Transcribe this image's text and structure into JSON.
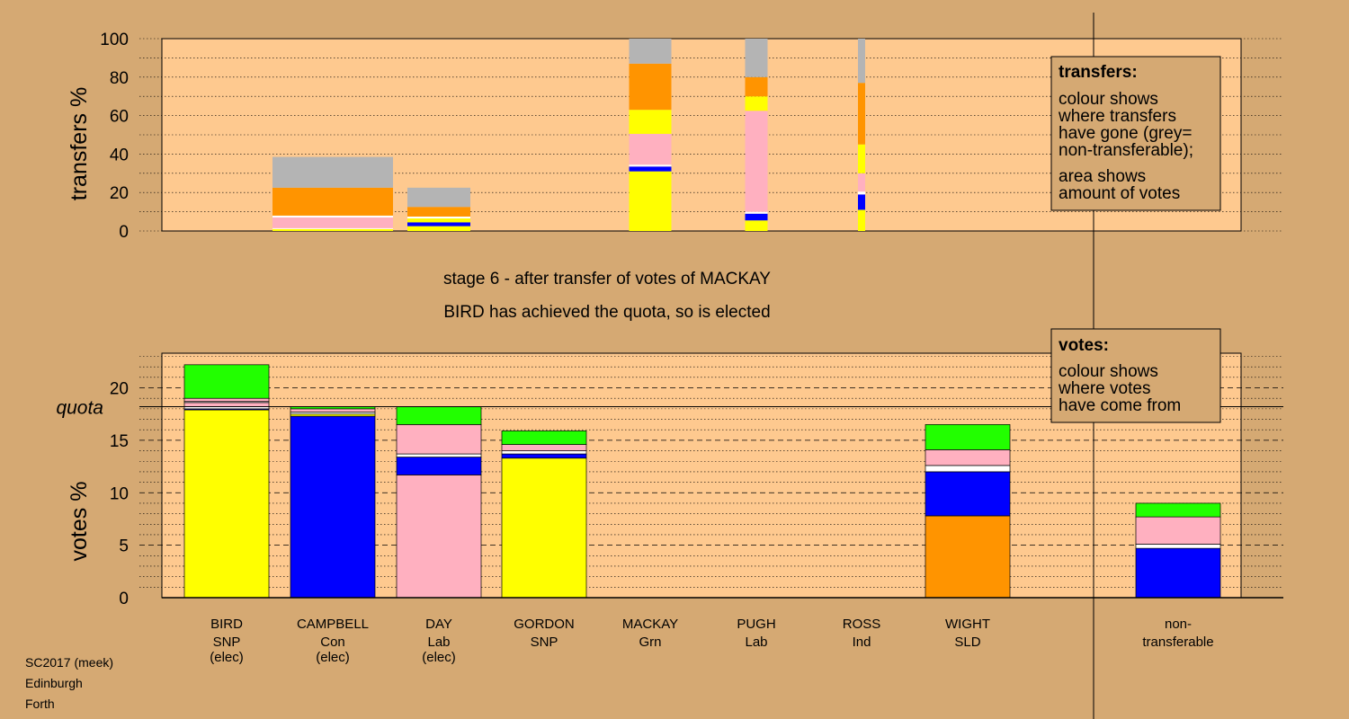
{
  "chart_data": [
    {
      "type": "bar",
      "stacked": true,
      "ylabel": "transfers %",
      "ylim": [
        0,
        100
      ],
      "yticks": [
        0,
        20,
        40,
        60,
        80,
        100
      ],
      "grid": true,
      "series_colors": {
        "SNP": "#ffff00",
        "Con": "#0000ff",
        "Lab": "#ffb0c0",
        "SLD": "#ff9400",
        "Grn": "#22ff00",
        "Ind": "#ffffff",
        "non-transferable": "#b4b4b4"
      },
      "categories": [
        "BIRD",
        "CAMPBELL",
        "DAY",
        "GORDON",
        "MACKAY",
        "PUGH",
        "ROSS",
        "WIGHT",
        "non-transferable"
      ],
      "bars": [
        {
          "candidate": "CAMPBELL",
          "segments": [
            {
              "party": "SNP",
              "value": 1
            },
            {
              "party": "Ind",
              "value": 0.5
            },
            {
              "party": "Lab",
              "value": 5.5
            },
            {
              "party": "Ind",
              "value": 1
            },
            {
              "party": "SLD",
              "value": 14.5
            },
            {
              "party": "non-transferable",
              "value": 16
            }
          ]
        },
        {
          "candidate": "DAY",
          "segments": [
            {
              "party": "SNP",
              "value": 2.5
            },
            {
              "party": "Con",
              "value": 2
            },
            {
              "party": "SNP",
              "value": 2
            },
            {
              "party": "Ind",
              "value": 1
            },
            {
              "party": "SLD",
              "value": 5
            },
            {
              "party": "non-transferable",
              "value": 10
            }
          ]
        },
        {
          "candidate": "MACKAY",
          "segments": [
            {
              "party": "SNP",
              "value": 31
            },
            {
              "party": "Con",
              "value": 2.5
            },
            {
              "party": "Ind",
              "value": 1
            },
            {
              "party": "Lab",
              "value": 16
            },
            {
              "party": "SNP",
              "value": 12.5
            },
            {
              "party": "SLD",
              "value": 24
            },
            {
              "party": "non-transferable",
              "value": 13
            }
          ]
        },
        {
          "candidate": "PUGH",
          "segments": [
            {
              "party": "SNP",
              "value": 5.5
            },
            {
              "party": "Con",
              "value": 3.5
            },
            {
              "party": "Ind",
              "value": 1
            },
            {
              "party": "Lab",
              "value": 52.5
            },
            {
              "party": "SNP",
              "value": 7.5
            },
            {
              "party": "SLD",
              "value": 10
            },
            {
              "party": "non-transferable",
              "value": 20
            }
          ]
        },
        {
          "candidate": "ROSS",
          "segments": [
            {
              "party": "SNP",
              "value": 11
            },
            {
              "party": "Con",
              "value": 8
            },
            {
              "party": "Ind",
              "value": 1.5
            },
            {
              "party": "Lab",
              "value": 9.5
            },
            {
              "party": "SNP",
              "value": 15
            },
            {
              "party": "SLD",
              "value": 32
            },
            {
              "party": "non-transferable",
              "value": 23
            }
          ]
        }
      ]
    },
    {
      "type": "bar",
      "stacked": true,
      "ylabel": "votes %",
      "ylim": [
        0,
        23.3
      ],
      "yticks": [
        0,
        5,
        10,
        15,
        20
      ],
      "quota": 18.2,
      "quota_label": "quota",
      "grid": true,
      "categories": [
        "BIRD",
        "CAMPBELL",
        "DAY",
        "GORDON",
        "MACKAY",
        "PUGH",
        "ROSS",
        "WIGHT",
        "non-transferable"
      ],
      "bars": [
        {
          "candidate": "BIRD",
          "segments": [
            {
              "party": "SNP",
              "value": 17.9
            },
            {
              "party": "Con",
              "value": 0.1
            },
            {
              "party": "Ind",
              "value": 0.2
            },
            {
              "party": "Lab",
              "value": 0.4
            },
            {
              "party": "Ind",
              "value": 0.1
            },
            {
              "party": "Lab",
              "value": 0.3
            },
            {
              "party": "Grn",
              "value": 3.2
            }
          ]
        },
        {
          "candidate": "CAMPBELL",
          "segments": [
            {
              "party": "Con",
              "value": 17.3
            },
            {
              "party": "SNP",
              "value": 0.2
            },
            {
              "party": "Ind",
              "value": 0.2
            },
            {
              "party": "Lab",
              "value": 0.3
            },
            {
              "party": "Grn",
              "value": 0.2
            }
          ]
        },
        {
          "candidate": "DAY",
          "segments": [
            {
              "party": "Lab",
              "value": 11.7
            },
            {
              "party": "Con",
              "value": 1.7
            },
            {
              "party": "Ind",
              "value": 0.3
            },
            {
              "party": "Lab",
              "value": 2.8
            },
            {
              "party": "Grn",
              "value": 1.7
            }
          ]
        },
        {
          "candidate": "GORDON",
          "segments": [
            {
              "party": "SNP",
              "value": 13.3
            },
            {
              "party": "Con",
              "value": 0.4
            },
            {
              "party": "Ind",
              "value": 0.3
            },
            {
              "party": "Lab",
              "value": 0.6
            },
            {
              "party": "Grn",
              "value": 1.3
            }
          ]
        },
        {
          "candidate": "MACKAY",
          "segments": []
        },
        {
          "candidate": "PUGH",
          "segments": []
        },
        {
          "candidate": "ROSS",
          "segments": []
        },
        {
          "candidate": "WIGHT",
          "segments": [
            {
              "party": "SLD",
              "value": 7.8
            },
            {
              "party": "Con",
              "value": 4.2
            },
            {
              "party": "Ind",
              "value": 0.6
            },
            {
              "party": "Lab",
              "value": 1.5
            },
            {
              "party": "Grn",
              "value": 2.4
            }
          ]
        },
        {
          "candidate": "non-transferable",
          "segments": [
            {
              "party": "Con",
              "value": 4.7
            },
            {
              "party": "Ind",
              "value": 0.4
            },
            {
              "party": "Lab",
              "value": 2.6
            },
            {
              "party": "Grn",
              "value": 1.3
            }
          ]
        }
      ]
    }
  ],
  "stage_text": {
    "line1": "stage 6 - after transfer of votes of MACKAY",
    "line2": "BIRD has achieved the quota, so is elected"
  },
  "legend_transfers": {
    "heading": "transfers:",
    "lines": [
      "colour shows",
      "where transfers",
      "have gone (grey=",
      "non-transferable);"
    ],
    "lines2": [
      "area shows",
      "amount of votes"
    ]
  },
  "legend_votes": {
    "heading": "votes:",
    "lines": [
      "colour shows",
      "where votes",
      "have come from"
    ]
  },
  "candidates": [
    {
      "name": "BIRD",
      "party": "SNP",
      "status": "(elec)"
    },
    {
      "name": "CAMPBELL",
      "party": "Con",
      "status": "(elec)"
    },
    {
      "name": "DAY",
      "party": "Lab",
      "status": "(elec)"
    },
    {
      "name": "GORDON",
      "party": "SNP",
      "status": ""
    },
    {
      "name": "MACKAY",
      "party": "Grn",
      "status": ""
    },
    {
      "name": "PUGH",
      "party": "Lab",
      "status": ""
    },
    {
      "name": "ROSS",
      "party": "Ind",
      "status": ""
    },
    {
      "name": "WIGHT",
      "party": "SLD",
      "status": ""
    },
    {
      "name": "non-",
      "party": "transferable",
      "status": ""
    }
  ],
  "footer": [
    "SC2017 (meek)",
    "Edinburgh",
    "Forth"
  ]
}
